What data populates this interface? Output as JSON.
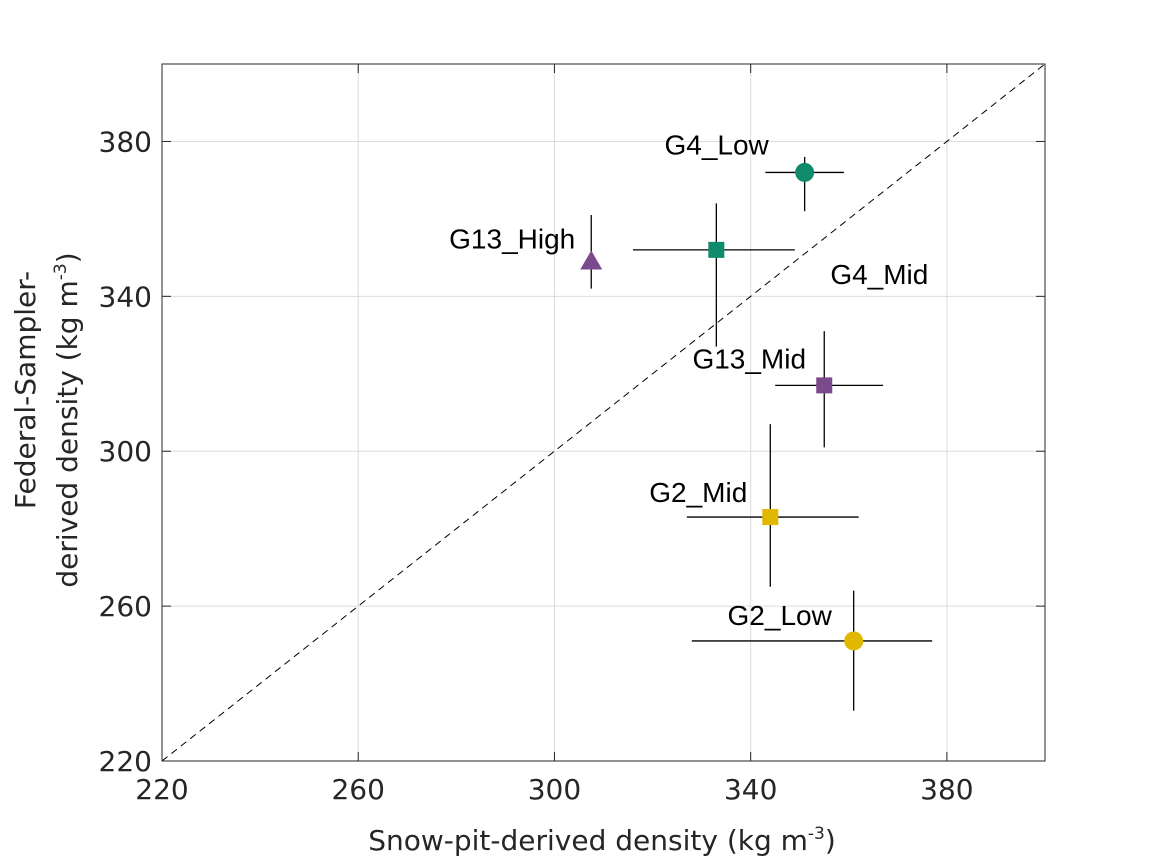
{
  "chart_data": {
    "type": "scatter",
    "xlabel": "Snow-pit-derived density (kg m",
    "ylabel_line1": "Federal-Sampler-",
    "ylabel_line2": "derived density (kg m",
    "unit_exponent": "-3",
    "unit_close": ")",
    "xlim": [
      220,
      400
    ],
    "ylim": [
      220,
      400
    ],
    "x_ticks": [
      220,
      260,
      300,
      340,
      380
    ],
    "y_ticks": [
      220,
      260,
      300,
      340,
      380
    ],
    "grid": true,
    "reference_line": "1:1",
    "points": [
      {
        "label": "G4_Low",
        "x": 351,
        "y": 372,
        "x_err": [
          343,
          359
        ],
        "y_err": [
          362,
          376
        ],
        "marker": "circle",
        "color": "#0f8a6a"
      },
      {
        "label": "G4_Mid",
        "x": 333,
        "y": 352,
        "x_err": [
          316,
          349
        ],
        "y_err": [
          327,
          364
        ],
        "marker": "square",
        "color": "#0f8a6a"
      },
      {
        "label": "G13_High",
        "x": 307.5,
        "y": 349,
        "x_err": null,
        "y_err": [
          342,
          361
        ],
        "marker": "triangle",
        "color": "#7a4a8c"
      },
      {
        "label": "G13_Mid",
        "x": 355,
        "y": 317,
        "x_err": [
          345,
          367
        ],
        "y_err": [
          301,
          331
        ],
        "marker": "square",
        "color": "#7a4a8c"
      },
      {
        "label": "G2_Mid",
        "x": 344,
        "y": 283,
        "x_err": [
          327,
          362
        ],
        "y_err": [
          265,
          307
        ],
        "marker": "square",
        "color": "#e0b800"
      },
      {
        "label": "G2_Low",
        "x": 361,
        "y": 251,
        "x_err": [
          328,
          377
        ],
        "y_err": [
          233,
          264
        ],
        "marker": "circle",
        "color": "#e0b800"
      }
    ]
  }
}
